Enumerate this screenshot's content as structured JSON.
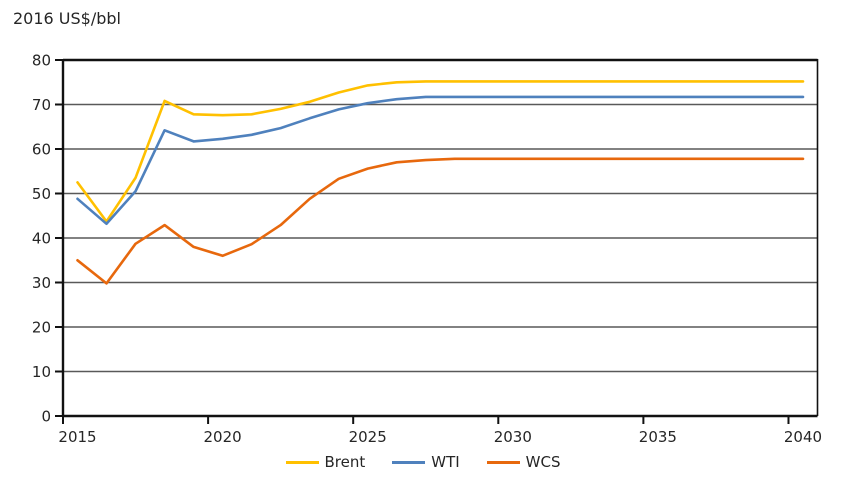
{
  "chart_data": {
    "type": "line",
    "title": "2016 US$/bbl",
    "x": [
      2015,
      2016,
      2017,
      2018,
      2019,
      2020,
      2021,
      2022,
      2023,
      2024,
      2025,
      2026,
      2027,
      2028,
      2029,
      2030,
      2031,
      2032,
      2033,
      2034,
      2035,
      2036,
      2037,
      2038,
      2039,
      2040
    ],
    "x_tick_labels": [
      "2015",
      "2020",
      "2025",
      "2030",
      "2035",
      "2040"
    ],
    "y_ticks": [
      0,
      10,
      20,
      30,
      40,
      50,
      60,
      70,
      80
    ],
    "ylim": [
      0,
      80
    ],
    "grid": "horizontal",
    "legend_position": "bottom",
    "grid_color": "#595959",
    "axis_color": "#111111",
    "text_color": "#262626",
    "background_color": "#ffffff",
    "series": [
      {
        "name": "Brent",
        "color": "#FFC000",
        "values": [
          52.5,
          43.7,
          53.5,
          70.8,
          67.8,
          67.6,
          67.8,
          69.0,
          70.6,
          72.7,
          74.3,
          75.0,
          75.2,
          75.2,
          75.2,
          75.2,
          75.2,
          75.2,
          75.2,
          75.2,
          75.2,
          75.2,
          75.2,
          75.2,
          75.2,
          75.2
        ]
      },
      {
        "name": "WTI",
        "color": "#4F81BD",
        "values": [
          48.8,
          43.2,
          50.5,
          64.2,
          61.7,
          62.3,
          63.2,
          64.7,
          66.9,
          68.9,
          70.3,
          71.2,
          71.7,
          71.7,
          71.7,
          71.7,
          71.7,
          71.7,
          71.7,
          71.7,
          71.7,
          71.7,
          71.7,
          71.7,
          71.7,
          71.7
        ]
      },
      {
        "name": "WCS",
        "color": "#E7680D",
        "values": [
          35.0,
          29.8,
          38.7,
          42.9,
          38.0,
          36.0,
          38.6,
          42.9,
          48.8,
          53.3,
          55.6,
          57.0,
          57.5,
          57.8,
          57.8,
          57.8,
          57.8,
          57.8,
          57.8,
          57.8,
          57.8,
          57.8,
          57.8,
          57.8,
          57.8,
          57.8
        ]
      }
    ]
  }
}
